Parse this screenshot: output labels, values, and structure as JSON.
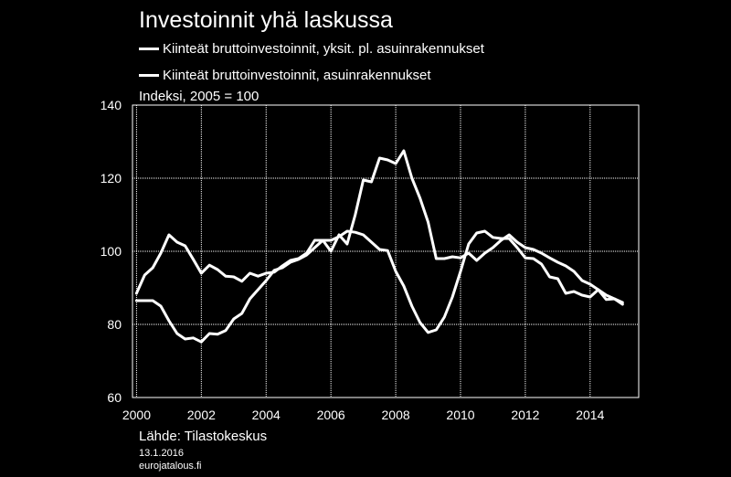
{
  "title": "Investoinnit yhä laskussa",
  "unit_label": "Indeksi, 2005 = 100",
  "footer": {
    "source": "Lähde: Tilastokeskus",
    "date": "13.1.2016",
    "site": "eurojatalous.fi"
  },
  "colors": {
    "background": "#000000",
    "foreground": "#ffffff"
  },
  "chart_data": {
    "type": "line",
    "legend": "top",
    "grid": true,
    "xlim": [
      1999.875,
      2015.5
    ],
    "ylim": [
      60,
      140
    ],
    "yticks": [
      60,
      80,
      100,
      120,
      140
    ],
    "xticks": [
      2000,
      2002,
      2004,
      2006,
      2008,
      2010,
      2012,
      2014
    ],
    "xticklabels": [
      "2000",
      "2002",
      "2004",
      "2006",
      "2008",
      "2010",
      "2012",
      "2014"
    ],
    "series": [
      {
        "name": "Kiinteät bruttoinvestoinnit, yksit. pl. asuinrakennukset",
        "x": [
          2000.0,
          2000.25,
          2000.5,
          2000.75,
          2001.0,
          2001.25,
          2001.5,
          2001.75,
          2002.0,
          2002.25,
          2002.5,
          2002.75,
          2003.0,
          2003.25,
          2003.5,
          2003.75,
          2004.0,
          2004.25,
          2004.5,
          2004.75,
          2005.0,
          2005.25,
          2005.5,
          2005.75,
          2006.0,
          2006.25,
          2006.5,
          2006.75,
          2007.0,
          2007.25,
          2007.5,
          2007.75,
          2008.0,
          2008.25,
          2008.5,
          2008.75,
          2009.0,
          2009.25,
          2009.5,
          2009.75,
          2010.0,
          2010.25,
          2010.5,
          2010.75,
          2011.0,
          2011.25,
          2011.5,
          2011.75,
          2012.0,
          2012.25,
          2012.5,
          2012.75,
          2013.0,
          2013.25,
          2013.5,
          2013.75,
          2014.0,
          2014.25,
          2014.5,
          2014.75,
          2015.0
        ],
        "values": [
          86.5,
          86.5,
          86.5,
          85,
          81,
          77.5,
          76,
          76.3,
          75.2,
          77.5,
          77.3,
          78.3,
          81.5,
          83,
          87,
          89.5,
          92,
          94.8,
          95.5,
          97,
          97.8,
          99,
          101,
          103,
          103,
          104,
          105.5,
          105.2,
          104.5,
          102.5,
          100.5,
          100.2,
          94.5,
          90.5,
          85,
          80.5,
          77.8,
          78.5,
          82,
          87.5,
          94.5,
          102,
          105,
          105.5,
          103.8,
          103.5,
          103.5,
          101,
          98.2,
          98,
          96.5,
          93,
          92.5,
          88.5,
          89,
          88,
          87.5,
          89.5,
          86.8,
          87,
          86
        ]
      },
      {
        "name": "Kiinteät bruttoinvestoinnit, asuinrakennukset",
        "x": [
          2000.0,
          2000.25,
          2000.5,
          2000.75,
          2001.0,
          2001.25,
          2001.5,
          2001.75,
          2002.0,
          2002.25,
          2002.5,
          2002.75,
          2003.0,
          2003.25,
          2003.5,
          2003.75,
          2004.0,
          2004.25,
          2004.5,
          2004.75,
          2005.0,
          2005.25,
          2005.5,
          2005.75,
          2006.0,
          2006.25,
          2006.5,
          2006.75,
          2007.0,
          2007.25,
          2007.5,
          2007.75,
          2008.0,
          2008.25,
          2008.5,
          2008.75,
          2009.0,
          2009.25,
          2009.5,
          2009.75,
          2010.0,
          2010.25,
          2010.5,
          2010.75,
          2011.0,
          2011.25,
          2011.5,
          2011.75,
          2012.0,
          2012.25,
          2012.5,
          2012.75,
          2013.0,
          2013.25,
          2013.5,
          2013.75,
          2014.0,
          2014.25,
          2014.5,
          2014.75,
          2015.0
        ],
        "values": [
          88.5,
          93.5,
          95.5,
          99.5,
          104.5,
          102.5,
          101.5,
          97.8,
          94,
          96.2,
          95,
          93.2,
          93,
          91.8,
          94,
          93.2,
          94,
          94.3,
          96,
          97.5,
          98,
          99.5,
          103,
          103,
          100,
          104.5,
          102,
          110,
          119.5,
          119,
          125.5,
          125,
          124,
          127.5,
          120,
          114.5,
          108,
          98,
          98,
          98.5,
          98.2,
          99.5,
          97.5,
          99.5,
          101,
          103,
          104.5,
          102.5,
          101,
          100.5,
          99.5,
          98.2,
          97,
          96,
          94.5,
          92,
          91,
          89.5,
          88,
          87,
          85.5
        ]
      }
    ]
  }
}
